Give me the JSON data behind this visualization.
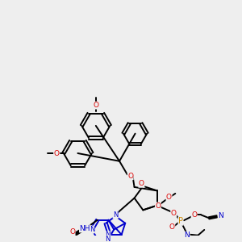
{
  "background_color": "#eeeeee",
  "line_color": "#000000",
  "bond_width": 1.4,
  "atom_colors": {
    "N": "#0000cc",
    "O": "#dd0000",
    "P": "#cc8800",
    "C": "#000000",
    "H": "#000000"
  },
  "figsize": [
    3.0,
    3.0
  ],
  "dpi": 100,
  "xlim": [
    0,
    300
  ],
  "ylim": [
    0,
    300
  ]
}
